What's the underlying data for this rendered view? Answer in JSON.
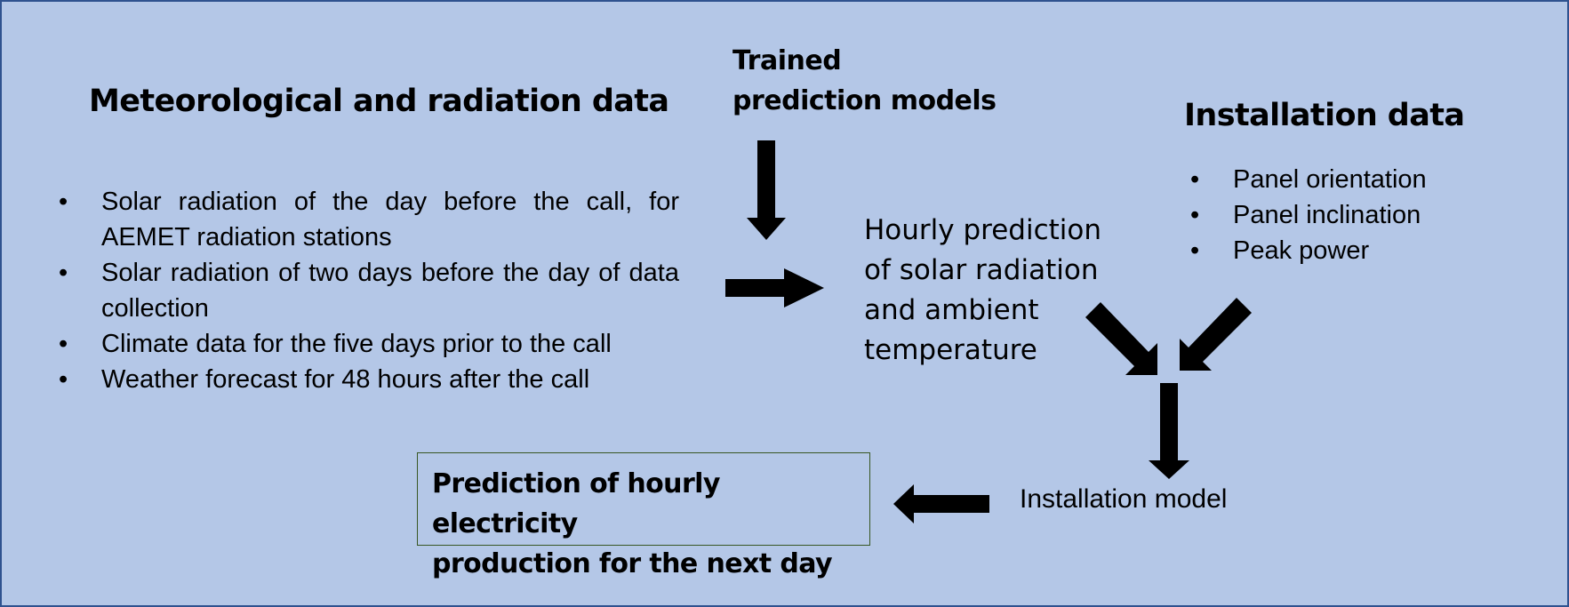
{
  "meteorological": {
    "title": "Meteorological and radiation data",
    "items": [
      "Solar radiation of the day before the call, for AEMET radiation stations",
      "Solar radiation of two days before the day of data collection",
      "Climate data for the five days prior to the call",
      "Weather forecast for 48 hours after the call"
    ]
  },
  "trained_models": {
    "line1": "Trained",
    "line2": "prediction models"
  },
  "installation": {
    "title": "Installation data",
    "items": [
      "Panel orientation",
      "Panel inclination",
      "Peak power"
    ]
  },
  "hourly_prediction": {
    "lines": [
      "Hourly prediction",
      "of solar radiation",
      "and ambient",
      "temperature"
    ]
  },
  "installation_model": "Installation model",
  "output": {
    "line1": "Prediction of hourly electricity",
    "line2": "production for the next day"
  },
  "colors": {
    "background": "#b4c7e7",
    "frame_border": "#2f528f",
    "output_box_border": "#385723",
    "arrow": "#000000"
  }
}
